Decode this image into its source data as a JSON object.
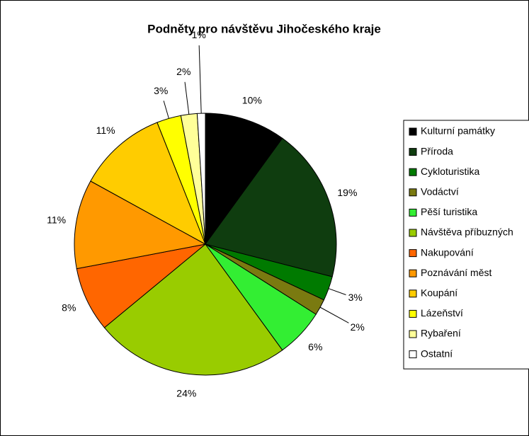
{
  "chart_data": {
    "type": "pie",
    "title": "Podněty pro návštěvu Jihočeského kraje",
    "categories": [
      "Kulturní památky",
      "Příroda",
      "Cykloturistika",
      "Vodáctví",
      "Pěší turistika",
      "Návštěva příbuzných",
      "Nakupování",
      "Poznávání měst",
      "Koupání",
      "Lázeňství",
      "Rybaření",
      "Ostatní"
    ],
    "values": [
      10,
      19,
      3,
      2,
      6,
      24,
      8,
      11,
      11,
      3,
      2,
      1
    ],
    "colors": [
      "#000000",
      "#0f3d0f",
      "#007a00",
      "#7a7a10",
      "#33ee33",
      "#99cc00",
      "#ff6600",
      "#ff9900",
      "#ffcc00",
      "#ffff00",
      "#ffff99",
      "#ffffff"
    ],
    "legend": "right"
  }
}
